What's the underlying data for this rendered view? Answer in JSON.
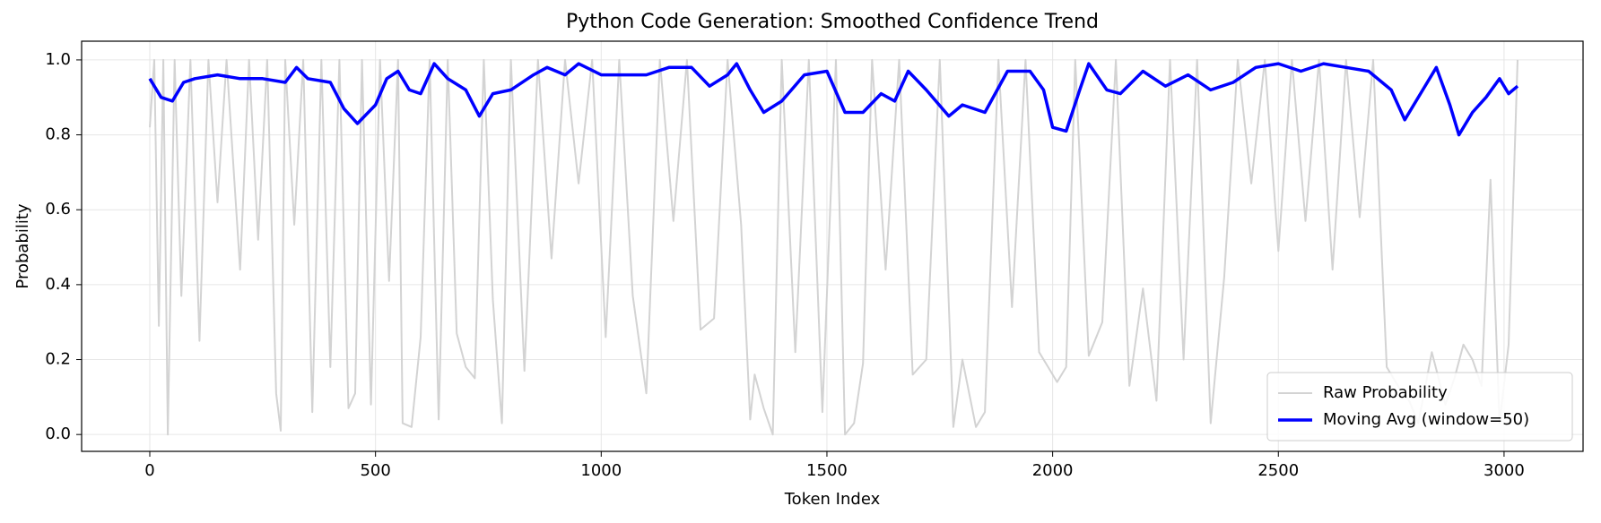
{
  "chart_data": {
    "type": "line",
    "title": "Python Code Generation: Smoothed Confidence Trend",
    "xlabel": "Token Index",
    "ylabel": "Probability",
    "xlim": [
      -151,
      3175
    ],
    "ylim": [
      -0.045,
      1.05
    ],
    "xticks": [
      0,
      500,
      1000,
      1500,
      2000,
      2500,
      3000
    ],
    "yticks": [
      {
        "value": 0,
        "label": "0.0"
      },
      {
        "value": 0.2,
        "label": "0.2"
      },
      {
        "value": 0.4,
        "label": "0.4"
      },
      {
        "value": 0.6,
        "label": "0.6"
      },
      {
        "value": 0.8,
        "label": "0.8"
      },
      {
        "value": 1,
        "label": "1.0"
      }
    ],
    "grid": true,
    "legend": "lower right",
    "series": [
      {
        "name": "Raw Probability",
        "color": "#d3d3d3",
        "width": 2,
        "x": [
          0,
          10,
          20,
          30,
          40,
          55,
          70,
          90,
          110,
          130,
          150,
          170,
          200,
          220,
          240,
          260,
          280,
          290,
          300,
          320,
          340,
          360,
          380,
          400,
          420,
          440,
          455,
          470,
          490,
          510,
          530,
          550,
          560,
          580,
          600,
          620,
          640,
          660,
          680,
          700,
          720,
          740,
          760,
          780,
          800,
          830,
          860,
          890,
          920,
          950,
          980,
          1010,
          1040,
          1070,
          1100,
          1130,
          1160,
          1190,
          1220,
          1250,
          1280,
          1310,
          1330,
          1340,
          1360,
          1380,
          1400,
          1430,
          1460,
          1490,
          1520,
          1540,
          1560,
          1580,
          1600,
          1630,
          1660,
          1690,
          1720,
          1750,
          1780,
          1800,
          1830,
          1850,
          1880,
          1910,
          1940,
          1970,
          1990,
          2010,
          2030,
          2050,
          2080,
          2110,
          2140,
          2170,
          2200,
          2230,
          2260,
          2290,
          2320,
          2350,
          2380,
          2410,
          2440,
          2470,
          2500,
          2530,
          2560,
          2590,
          2620,
          2650,
          2680,
          2710,
          2740,
          2770,
          2790,
          2810,
          2840,
          2870,
          2890,
          2910,
          2930,
          2950,
          2970,
          2990,
          3010,
          3030
        ],
        "values": [
          0.82,
          1,
          0.29,
          1,
          0.0,
          1,
          0.37,
          1,
          0.25,
          1,
          0.62,
          1,
          0.44,
          1,
          0.52,
          1,
          0.11,
          0.01,
          1,
          0.56,
          1,
          0.06,
          1,
          0.18,
          1,
          0.07,
          0.11,
          1,
          0.08,
          1,
          0.41,
          1,
          0.03,
          0.02,
          0.26,
          1,
          0.04,
          1,
          0.27,
          0.18,
          0.15,
          1,
          0.36,
          0.03,
          1,
          0.17,
          1,
          0.47,
          1,
          0.67,
          1,
          0.26,
          1,
          0.37,
          0.11,
          1,
          0.57,
          1,
          0.28,
          0.31,
          1,
          0.56,
          0.04,
          0.16,
          0.07,
          0.0,
          1,
          0.22,
          1,
          0.06,
          1,
          0.0,
          0.03,
          0.19,
          1,
          0.44,
          1,
          0.16,
          0.2,
          1,
          0.02,
          0.2,
          0.02,
          0.06,
          1,
          0.34,
          1,
          0.22,
          0.18,
          0.14,
          0.18,
          1,
          0.21,
          0.3,
          1,
          0.13,
          0.39,
          0.09,
          1,
          0.2,
          1,
          0.03,
          0.42,
          1,
          0.67,
          1,
          0.49,
          1,
          0.57,
          1,
          0.44,
          1,
          0.58,
          1,
          0.18,
          0.12,
          0.09,
          0.03,
          0.22,
          0.08,
          0.15,
          0.24,
          0.2,
          0.13,
          0.68,
          0.03,
          0.24,
          1
        ]
      },
      {
        "name": "Moving Avg (window=50)",
        "color": "#0000ff",
        "width": 3.5,
        "x": [
          0,
          25,
          50,
          75,
          100,
          150,
          200,
          250,
          300,
          325,
          350,
          400,
          430,
          460,
          500,
          525,
          550,
          575,
          600,
          630,
          660,
          700,
          730,
          760,
          800,
          850,
          880,
          920,
          950,
          1000,
          1050,
          1100,
          1150,
          1200,
          1240,
          1280,
          1300,
          1330,
          1360,
          1400,
          1450,
          1500,
          1540,
          1580,
          1620,
          1650,
          1680,
          1720,
          1770,
          1800,
          1850,
          1900,
          1950,
          1980,
          2000,
          2030,
          2060,
          2080,
          2120,
          2150,
          2200,
          2250,
          2300,
          2350,
          2400,
          2450,
          2500,
          2550,
          2600,
          2650,
          2700,
          2750,
          2780,
          2820,
          2850,
          2880,
          2900,
          2930,
          2960,
          2990,
          3010,
          3030
        ],
        "values": [
          0.95,
          0.9,
          0.89,
          0.94,
          0.95,
          0.96,
          0.95,
          0.95,
          0.94,
          0.98,
          0.95,
          0.94,
          0.87,
          0.83,
          0.88,
          0.95,
          0.97,
          0.92,
          0.91,
          0.99,
          0.95,
          0.92,
          0.85,
          0.91,
          0.92,
          0.96,
          0.98,
          0.96,
          0.99,
          0.96,
          0.96,
          0.96,
          0.98,
          0.98,
          0.93,
          0.96,
          0.99,
          0.92,
          0.86,
          0.89,
          0.96,
          0.97,
          0.86,
          0.86,
          0.91,
          0.89,
          0.97,
          0.92,
          0.85,
          0.88,
          0.86,
          0.97,
          0.97,
          0.92,
          0.82,
          0.81,
          0.92,
          0.99,
          0.92,
          0.91,
          0.97,
          0.93,
          0.96,
          0.92,
          0.94,
          0.98,
          0.99,
          0.97,
          0.99,
          0.98,
          0.97,
          0.92,
          0.84,
          0.92,
          0.98,
          0.88,
          0.8,
          0.86,
          0.9,
          0.95,
          0.91,
          0.93
        ]
      }
    ]
  }
}
